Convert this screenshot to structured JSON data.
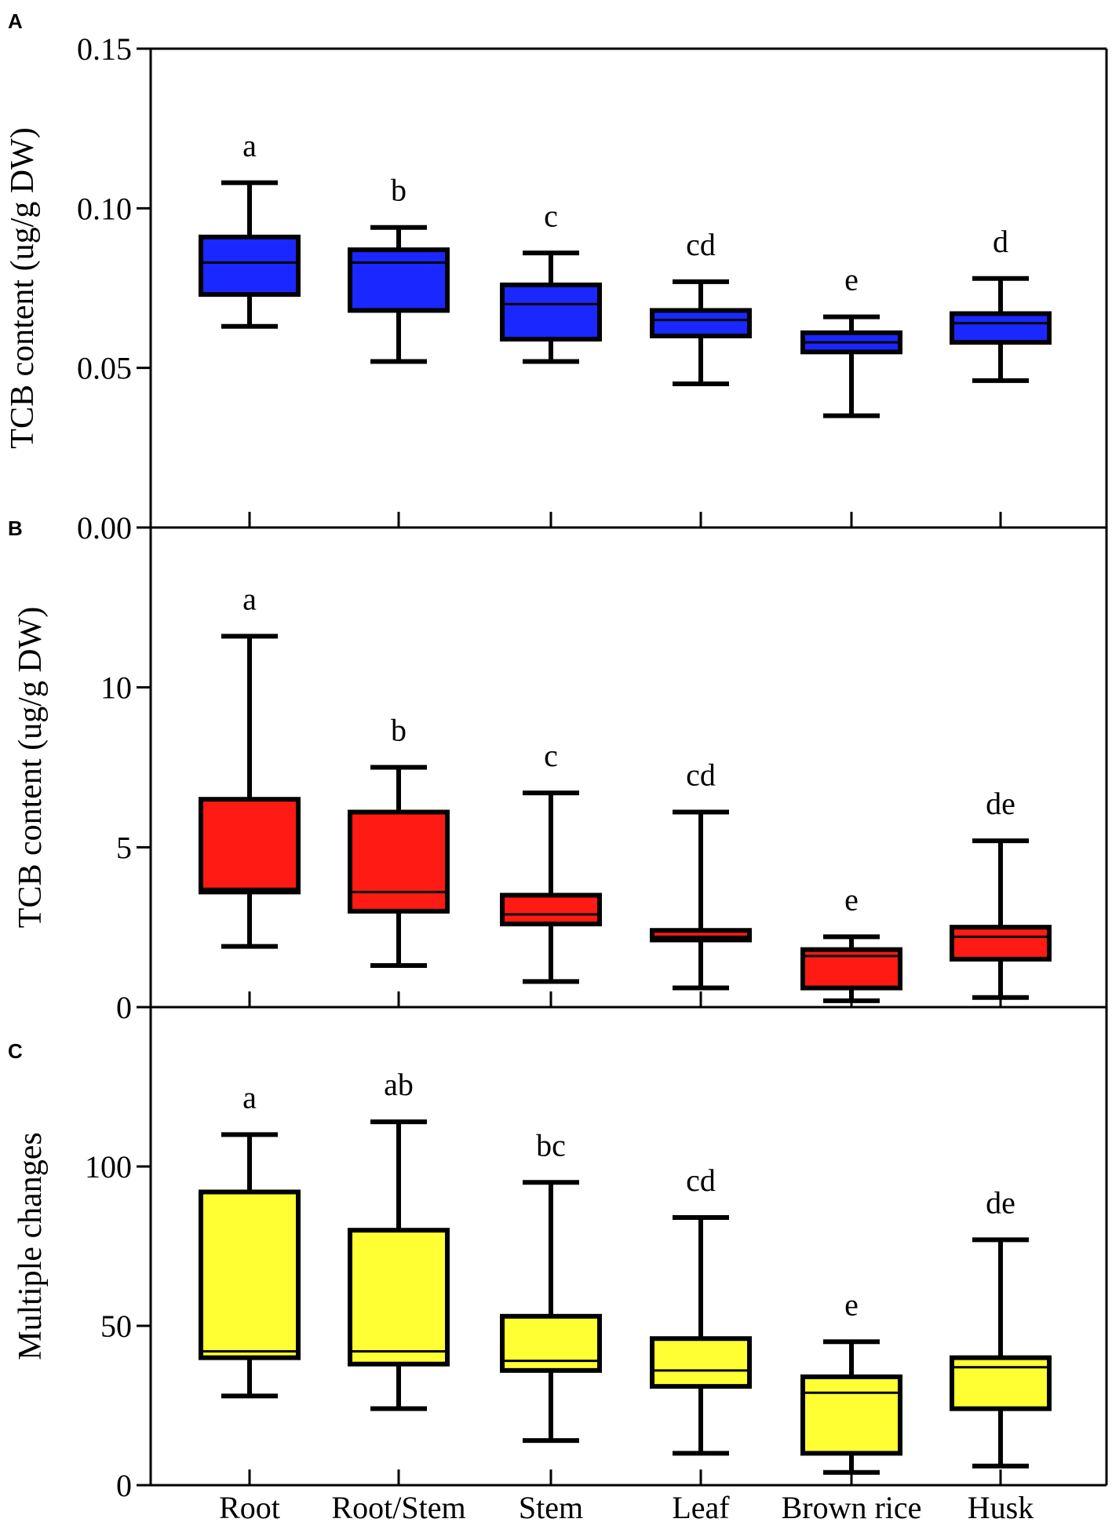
{
  "chart_data": [
    {
      "panel": "A",
      "type": "box",
      "ylabel": "TCB content (ug/g  DW)",
      "ylim": [
        0,
        0.15
      ],
      "yticks": [
        "0.00",
        "0.05",
        "0.10",
        "0.15"
      ],
      "categories": [
        "Root",
        "Root/Stem",
        "Stem",
        "Leaf",
        "Brown rice",
        "Husk"
      ],
      "fill": "#1a28ff",
      "boxes": [
        {
          "min": 0.063,
          "q1": 0.073,
          "median": 0.083,
          "q3": 0.091,
          "max": 0.108,
          "label": "a"
        },
        {
          "min": 0.052,
          "q1": 0.068,
          "median": 0.083,
          "q3": 0.087,
          "max": 0.094,
          "label": "b"
        },
        {
          "min": 0.052,
          "q1": 0.059,
          "median": 0.07,
          "q3": 0.076,
          "max": 0.086,
          "label": "c"
        },
        {
          "min": 0.045,
          "q1": 0.06,
          "median": 0.065,
          "q3": 0.068,
          "max": 0.077,
          "label": "cd"
        },
        {
          "min": 0.035,
          "q1": 0.055,
          "median": 0.058,
          "q3": 0.061,
          "max": 0.066,
          "label": "e"
        },
        {
          "min": 0.046,
          "q1": 0.058,
          "median": 0.064,
          "q3": 0.067,
          "max": 0.078,
          "label": "d"
        }
      ]
    },
    {
      "panel": "B",
      "type": "box",
      "ylabel": "TCB content (ug/g  DW)",
      "ylim": [
        0,
        15
      ],
      "yticks": [
        "0",
        "5",
        "10"
      ],
      "categories": [
        "Root",
        "Root/Stem",
        "Stem",
        "Leaf",
        "Brown rice",
        "Husk"
      ],
      "fill": "#ff1a14",
      "boxes": [
        {
          "min": 1.9,
          "q1": 3.6,
          "median": 3.7,
          "q3": 6.5,
          "max": 11.6,
          "label": "a"
        },
        {
          "min": 1.3,
          "q1": 3.0,
          "median": 3.6,
          "q3": 6.1,
          "max": 7.5,
          "label": "b"
        },
        {
          "min": 0.8,
          "q1": 2.6,
          "median": 2.9,
          "q3": 3.5,
          "max": 6.7,
          "label": "c"
        },
        {
          "min": 0.6,
          "q1": 2.1,
          "median": 2.2,
          "q3": 2.4,
          "max": 6.1,
          "label": "cd"
        },
        {
          "min": 0.2,
          "q1": 0.6,
          "median": 1.6,
          "q3": 1.8,
          "max": 2.2,
          "label": "e"
        },
        {
          "min": 0.3,
          "q1": 1.5,
          "median": 2.2,
          "q3": 2.5,
          "max": 5.2,
          "label": "de"
        }
      ]
    },
    {
      "panel": "C",
      "type": "box",
      "ylabel": "Multiple changes",
      "ylim": [
        0,
        150
      ],
      "yticks": [
        "0",
        "50",
        "100"
      ],
      "categories": [
        "Root",
        "Root/Stem",
        "Stem",
        "Leaf",
        "Brown rice",
        "Husk"
      ],
      "fill": "#ffff33",
      "boxes": [
        {
          "min": 28,
          "q1": 40,
          "median": 42,
          "q3": 92,
          "max": 110,
          "label": "a"
        },
        {
          "min": 24,
          "q1": 38,
          "median": 42,
          "q3": 80,
          "max": 114,
          "label": "ab"
        },
        {
          "min": 14,
          "q1": 36,
          "median": 39,
          "q3": 53,
          "max": 95,
          "label": "bc"
        },
        {
          "min": 10,
          "q1": 31,
          "median": 36,
          "q3": 46,
          "max": 84,
          "label": "cd"
        },
        {
          "min": 4,
          "q1": 10,
          "median": 29,
          "q3": 34,
          "max": 45,
          "label": "e"
        },
        {
          "min": 6,
          "q1": 24,
          "median": 37,
          "q3": 40,
          "max": 77,
          "label": "de"
        }
      ]
    }
  ],
  "x_categories": [
    "Root",
    "Root/Stem",
    "Stem",
    "Leaf",
    "Brown rice",
    "Husk"
  ]
}
